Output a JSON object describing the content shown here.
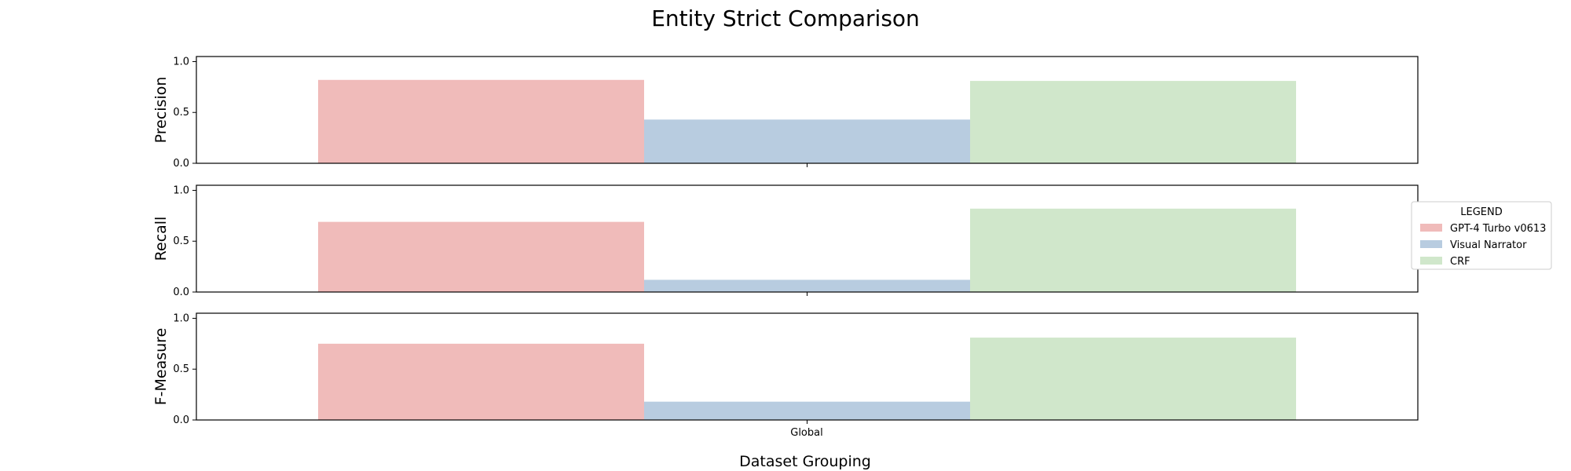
{
  "chart_data": {
    "type": "bar",
    "title": "Entity Strict Comparison",
    "xlabel": "Dataset Grouping",
    "categories": [
      "Global"
    ],
    "ylim": [
      0,
      1.05
    ],
    "yticks": [
      "0.0",
      "0.5",
      "1.0"
    ],
    "legend": {
      "title": "LEGEND",
      "placement": "right"
    },
    "series": [
      {
        "name": "GPT-4 Turbo v0613",
        "color": "#f0bbba"
      },
      {
        "name": "Visual Narrator",
        "color": "#b8cce0"
      },
      {
        "name": "CRF",
        "color": "#d0e7cb"
      }
    ],
    "panels": [
      {
        "ylabel": "Precision",
        "values": [
          0.82,
          0.43,
          0.81
        ]
      },
      {
        "ylabel": "Recall",
        "values": [
          0.69,
          0.12,
          0.82
        ]
      },
      {
        "ylabel": "F-Measure",
        "values": [
          0.75,
          0.18,
          0.81
        ]
      }
    ]
  }
}
